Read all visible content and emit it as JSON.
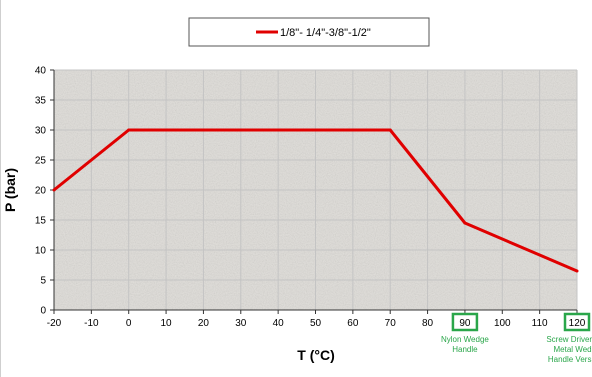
{
  "chart_data": {
    "type": "line",
    "title": "",
    "xlabel": "T (°C)",
    "ylabel": "P (bar)",
    "xlim": [
      -20,
      120
    ],
    "ylim": [
      0,
      40
    ],
    "x_ticks": [
      -20,
      -10,
      0,
      10,
      20,
      30,
      40,
      50,
      60,
      70,
      80,
      90,
      100,
      110,
      120
    ],
    "y_ticks": [
      0,
      5,
      10,
      15,
      20,
      25,
      30,
      35,
      40
    ],
    "grid": true,
    "legend_position": "top",
    "series": [
      {
        "name": "1/8\"- 1/4\"-3/8\"-1/2\"",
        "color": "#e00000",
        "x": [
          -20,
          0,
          70,
          90,
          120
        ],
        "y": [
          20,
          30,
          30,
          14.5,
          6.5
        ]
      }
    ],
    "highlighted_ticks": [
      {
        "value": 90,
        "label": "90",
        "note_lines": [
          "Nylon Wedge",
          "Handle"
        ]
      },
      {
        "value": 120,
        "label": "120",
        "note_lines": [
          "Screw Driver and",
          "Metal Wedge",
          "Handle Versions"
        ]
      }
    ],
    "colors": {
      "plot_background": "#e2e0dc",
      "grid": "#c4c4c4",
      "highlight": "#2aa64a"
    }
  }
}
